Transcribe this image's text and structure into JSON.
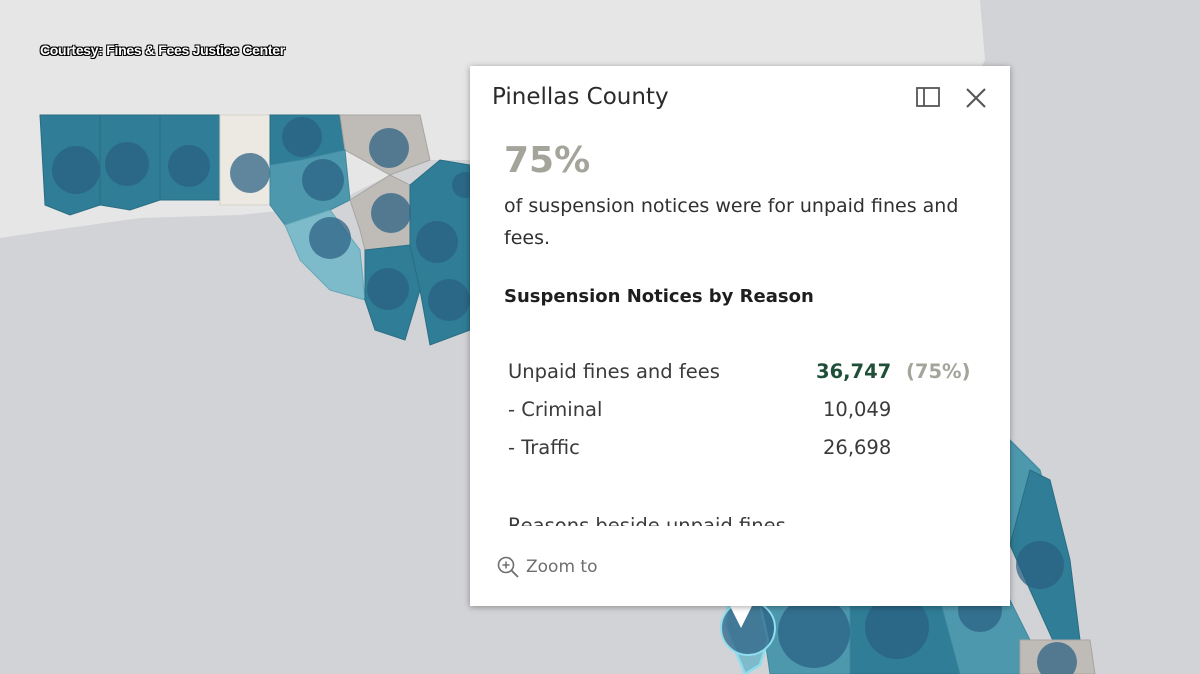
{
  "attribution": "Courtesy: Fines & Fees Justice Center",
  "map": {
    "colors": {
      "background": "#d2d3d6",
      "land_light": "#e6e6e6",
      "county_dark": "#2f7d96",
      "county_mid": "#4e98ae",
      "county_light": "#7dbbcb",
      "county_pale": "#ece9e2",
      "county_gray": "#bfbcb8",
      "bubble": "#2a5f82",
      "highlight": "#8fdcef"
    },
    "selected_county": "Pinellas County"
  },
  "popup": {
    "title": "Pinellas County",
    "headline_pct": "75%",
    "description": "of suspension notices were for unpaid fines and fees.",
    "section_title": "Suspension Notices by Reason",
    "rows": [
      {
        "label": "Unpaid fines and fees",
        "value": "36,747",
        "pct": "(75%)"
      },
      {
        "label": "- Criminal",
        "value": "10,049"
      },
      {
        "label": "- Traffic",
        "value": "26,698"
      }
    ],
    "cut_off_text": "Reasons beside unpaid fines",
    "zoom_to_label": "Zoom to",
    "icons": {
      "dock": "dock-icon",
      "close": "close-icon",
      "zoom": "zoom-in-icon"
    }
  }
}
